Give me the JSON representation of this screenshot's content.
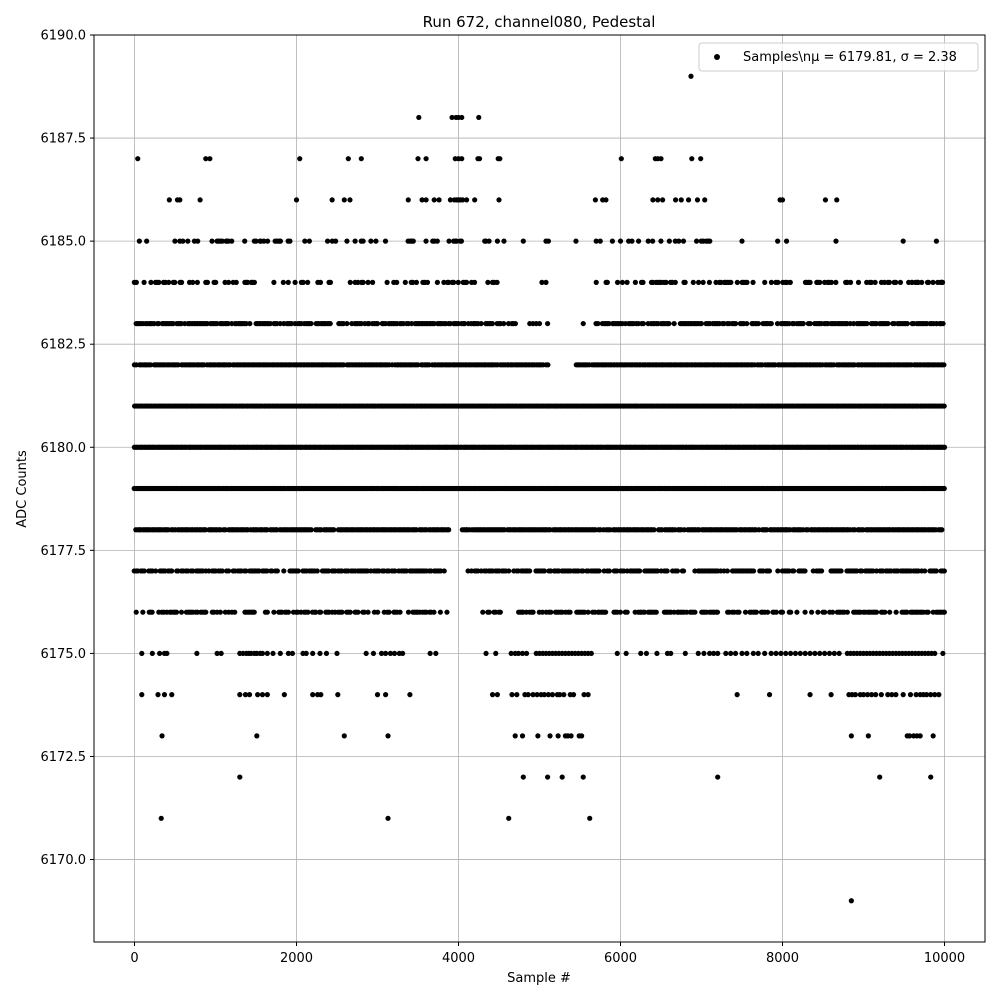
{
  "chart_data": {
    "type": "scatter",
    "title": "Run 672, channel080, Pedestal",
    "xlabel": "Sample #",
    "ylabel": "ADC Counts",
    "xlim": [
      -500,
      10500
    ],
    "ylim": [
      6168.0,
      6190.0
    ],
    "x_ticks": [
      0,
      2000,
      4000,
      6000,
      8000,
      10000
    ],
    "x_tick_labels": [
      "0",
      "2000",
      "4000",
      "6000",
      "8000",
      "10000"
    ],
    "y_ticks": [
      6170.0,
      6172.5,
      6175.0,
      6177.5,
      6180.0,
      6182.5,
      6185.0,
      6187.5,
      6190.0
    ],
    "y_tick_labels": [
      "6170.0",
      "6172.5",
      "6175.0",
      "6177.5",
      "6180.0",
      "6182.5",
      "6185.0",
      "6187.5",
      "6190.0"
    ],
    "grid": true,
    "legend_position": "top-right",
    "series": [
      {
        "name": "Samples\\n$\\mu$ = 6179.81, $\\sigma$ = 2.38",
        "legend_label": "Samples\\nμ = 6179.81, σ = 2.38",
        "color": "#000000",
        "marker": "circle",
        "levels": [
          {
            "y": 6169,
            "x": [
              8850
            ]
          },
          {
            "y": 6171,
            "x": [
              330,
              3130,
              4620,
              5620
            ]
          },
          {
            "y": 6172,
            "x": [
              1300,
              4800,
              5100,
              5280,
              5540,
              7200,
              9200,
              9830
            ]
          },
          {
            "y": 6173,
            "x": [
              340,
              1510,
              2590,
              3130,
              4700,
              4790,
              4980,
              5130,
              5230,
              5320,
              5350,
              5390,
              5490,
              5520,
              8850,
              9060,
              9540,
              9570,
              9620,
              9660,
              9700,
              9860
            ]
          },
          {
            "y": 6174,
            "x": [
              90,
              290,
              370,
              460,
              1300,
              1370,
              1420,
              1520,
              1580,
              1640,
              1850,
              2200,
              2260,
              2300,
              2510,
              3000,
              3100,
              3400,
              4420,
              4480,
              4660,
              4720,
              4820,
              4860,
              4920,
              4970,
              5020,
              5060,
              5110,
              5160,
              5220,
              5250,
              5300,
              5380,
              5420,
              5550,
              5600,
              7440,
              7840,
              8340,
              8600,
              8820,
              8860,
              8900,
              8960,
              9000,
              9050,
              9100,
              9150,
              9220,
              9300,
              9350,
              9400,
              9490,
              9580,
              9650,
              9700,
              9740,
              9780,
              9830,
              9880,
              9930
            ]
          },
          {
            "y": 6175,
            "x": [
              90,
              220,
              310,
              370,
              400,
              770,
              1020,
              1070,
              1300,
              1340,
              1380,
              1410,
              1440,
              1480,
              1510,
              1550,
              1580,
              1640,
              1710,
              1800,
              1900,
              1950,
              2080,
              2120,
              2200,
              2290,
              2370,
              2500,
              2860,
              2950,
              3050,
              3100,
              3160,
              3210,
              3270,
              3310,
              3650,
              3720,
              4340,
              4460,
              4650,
              4700,
              4740,
              4790,
              4840,
              4960,
              5000,
              5040,
              5080,
              5120,
              5160,
              5200,
              5240,
              5280,
              5320,
              5360,
              5400,
              5440,
              5480,
              5520,
              5560,
              5600,
              5640,
              5960,
              6070,
              6250,
              6320,
              6450,
              6580,
              6620,
              6800,
              6960,
              7030,
              7100,
              7150,
              7200,
              7300,
              7360,
              7420,
              7500,
              7560,
              7640,
              7700,
              7780,
              7860,
              7920,
              7980,
              8040,
              8100,
              8160,
              8220,
              8280,
              8340,
              8400,
              8460,
              8520,
              8580,
              8640,
              8700,
              8800,
              8840,
              8880,
              8920,
              8960,
              9000,
              9040,
              9080,
              9120,
              9160,
              9200,
              9240,
              9280,
              9320,
              9360,
              9400,
              9440,
              9480,
              9520,
              9560,
              9600,
              9640,
              9680,
              9720,
              9760,
              9800,
              9840,
              9880,
              9980
            ]
          }
        ],
        "dense_levels": [
          {
            "y": 6176,
            "ranges": [
              [
                0,
                3900
              ],
              [
                4300,
                10000
              ]
            ],
            "density": 0.55
          },
          {
            "y": 6177,
            "ranges": [
              [
                0,
                3850
              ],
              [
                4100,
                10000
              ]
            ],
            "density": 0.7
          },
          {
            "y": 6178,
            "ranges": [
              [
                0,
                3880
              ],
              [
                4050,
                10000
              ]
            ],
            "density": 0.9
          },
          {
            "y": 6179,
            "ranges": [
              [
                0,
                10000
              ]
            ],
            "density": 1.0
          },
          {
            "y": 6180,
            "ranges": [
              [
                0,
                10000
              ]
            ],
            "density": 1.0
          },
          {
            "y": 6181,
            "ranges": [
              [
                0,
                10000
              ]
            ],
            "density": 1.0
          },
          {
            "y": 6182,
            "ranges": [
              [
                0,
                5100
              ],
              [
                5450,
                10000
              ]
            ],
            "density": 0.95
          },
          {
            "y": 6183,
            "ranges": [
              [
                0,
                4700
              ],
              [
                5700,
                10000
              ]
            ],
            "density": 0.7
          },
          {
            "y": 6184,
            "ranges": [
              [
                0,
                4500
              ],
              [
                5700,
                10000
              ]
            ],
            "density": 0.4
          },
          {
            "y": 6185,
            "ranges": [
              [
                400,
                4600
              ],
              [
                6100,
                7100
              ]
            ],
            "density": 0.3
          }
        ],
        "sparse_levels": [
          {
            "y": 6183,
            "x": [
              4880,
              4920,
              4960,
              5000,
              5100,
              5540,
              9900,
              9950
            ]
          },
          {
            "y": 6184,
            "x": [
              5030,
              5080,
              9600,
              9670,
              9790,
              9950,
              9970
            ]
          },
          {
            "y": 6185,
            "x": [
              60,
              150,
              1130,
              1500,
              1550,
              4800,
              5080,
              5110,
              5450,
              5700,
              5750,
              5900,
              6000,
              7500,
              7940,
              8050,
              8660,
              9490,
              9900
            ]
          },
          {
            "y": 6186,
            "x": [
              430,
              530,
              560,
              810,
              2000,
              2440,
              2590,
              2660,
              3380,
              3550,
              3600,
              3700,
              3760,
              3900,
              3950,
              3980,
              4000,
              4020,
              4050,
              4100,
              4200,
              4500,
              5690,
              5780,
              5820,
              6400,
              6460,
              6520,
              6680,
              6750,
              6840,
              6950,
              7040,
              7970,
              8000,
              8530,
              8670
            ]
          },
          {
            "y": 6187,
            "x": [
              40,
              880,
              930,
              2040,
              2640,
              2800,
              3500,
              3600,
              3960,
              4000,
              4040,
              4240,
              4260,
              4490,
              4510,
              6010,
              6430,
              6460,
              6500,
              6880,
              6990
            ]
          },
          {
            "y": 6188,
            "x": [
              3510,
              3920,
              3970,
              4000,
              4040,
              4250
            ]
          },
          {
            "y": 6189,
            "x": [
              6870
            ]
          }
        ]
      }
    ]
  }
}
